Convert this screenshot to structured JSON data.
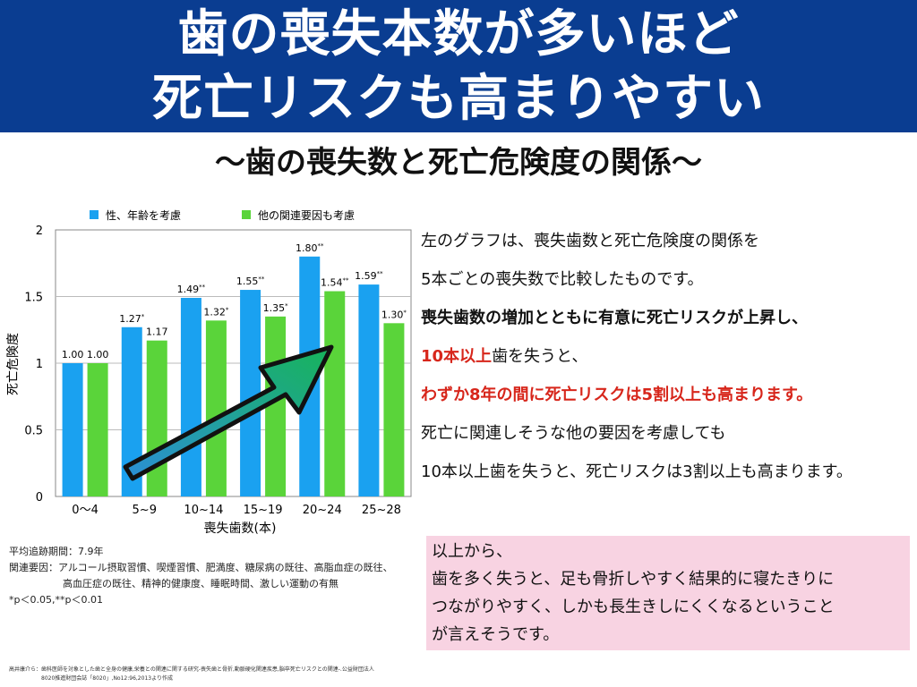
{
  "header": {
    "line1": "歯の喪失本数が多いほど",
    "line2": "死亡リスクも高まりやすい"
  },
  "subtitle": "〜歯の喪失数と死亡危険度の関係〜",
  "colors": {
    "header_bg": "#0a3d91",
    "series1": "#1aa1f0",
    "series2": "#5ad43a",
    "accent_red": "#d7261b",
    "conclusion_bg": "#f8d3e2"
  },
  "chart_data": {
    "type": "bar",
    "categories": [
      "0〜4",
      "5~9",
      "10~14",
      "15~19",
      "20~24",
      "25~28"
    ],
    "series": [
      {
        "name": "性、年齢を考慮",
        "values": [
          1.0,
          1.27,
          1.49,
          1.55,
          1.8,
          1.59
        ],
        "labels": [
          "1.00",
          "1.27*",
          "1.49**",
          "1.55**",
          "1.80**",
          "1.59**"
        ]
      },
      {
        "name": "他の関連要因も考慮",
        "values": [
          1.0,
          1.17,
          1.32,
          1.35,
          1.54,
          1.3
        ],
        "labels": [
          "1.00",
          "1.17",
          "1.32*",
          "1.35*",
          "1.54**",
          "1.30*"
        ]
      }
    ],
    "xlabel": "喪失歯数(本)",
    "ylabel": "死亡危険度",
    "ylim": [
      0,
      2
    ],
    "yticks": [
      "0",
      "0.5",
      "1",
      "1.5",
      "2"
    ],
    "grid": true,
    "legend_position": "top"
  },
  "description": {
    "line1": "左のグラフは、喪失歯数と死亡危険度の関係を",
    "line2": "5本ごとの喪失数で比較したものです。",
    "line3": "喪失歯数の増加とともに有意に死亡リスクが上昇し、",
    "line4_red": "10本以上",
    "line4_rest": "歯を失うと、",
    "line5": "わずか8年の間に死亡リスクは5割以上も高まります。",
    "line6": "死亡に関連しそうな他の要因を考慮しても",
    "line7": "10本以上歯を失うと、死亡リスクは3割以上も高まります。"
  },
  "notes": {
    "followup": "平均追跡期間：7.9年",
    "factors1": "関連要因：アルコール摂取習慣、喫煙習慣、肥満度、糖尿病の既往、高脂血症の既往、",
    "factors2": "高血圧症の既往、精神的健康度、睡眠時間、激しい運動の有無",
    "pvalues": "*p＜0.05,**p＜0.01"
  },
  "conclusion": {
    "line1": "以上から、",
    "line2": "歯を多く失うと、足も骨折しやすく結果的に寝たきりに",
    "line3": "つながりやすく、しかも長生きしにくくなるということ",
    "line4": "が言えそうです。"
  },
  "source": {
    "line1": "高井康介ら：歯科医師を対象とした歯と全身の健康,栄養との関連に関する研究-喪失歯と骨折,動脈硬化関連疾患,脳卒死亡リスクとの関連-.公益財団法人",
    "line2": "8020推進財団会誌「8020」,No12:96,2013より作成"
  }
}
